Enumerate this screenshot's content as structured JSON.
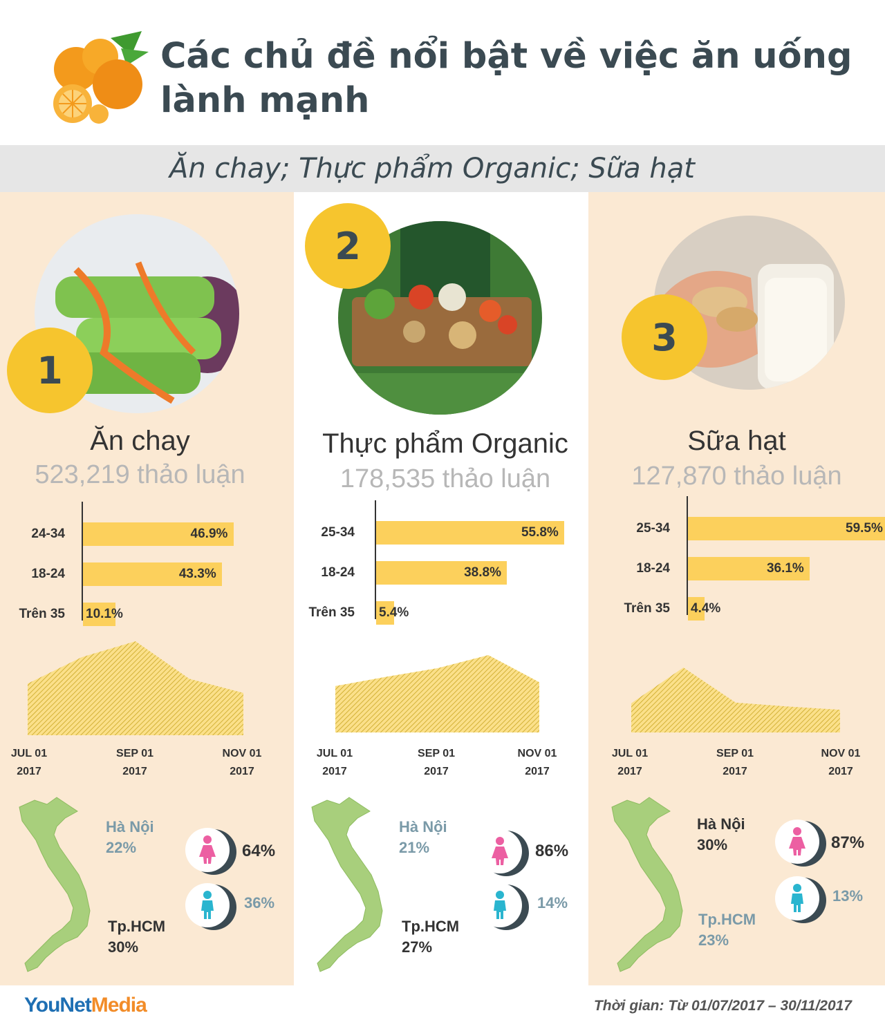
{
  "title": "Các chủ đề nổi bật về việc ăn uống lành mạnh",
  "subtitle": "Ăn chay; Thực phẩm Organic; Sữa hạt",
  "columns": [
    {
      "badge": "1",
      "name": "Ăn chay",
      "count": "523,219 thảo luận",
      "bars": [
        {
          "label": "24-34",
          "value": 46.9,
          "text": "46.9%"
        },
        {
          "label": "18-24",
          "value": 43.3,
          "text": "43.3%"
        },
        {
          "label": "Trên 35",
          "value": 10.1,
          "text": "10.1%"
        }
      ],
      "trend": [
        0.55,
        0.83,
        1.0,
        0.6,
        0.45
      ],
      "ticks": [
        [
          "JUL 01",
          "2017"
        ],
        [
          "SEP 01",
          "2017"
        ],
        [
          "NOV 01",
          "2017"
        ]
      ],
      "city1": {
        "name": "Hà Nội",
        "pct": "22%"
      },
      "city2": {
        "name": "Tp.HCM",
        "pct": "30%"
      },
      "female": "64%",
      "male": "36%"
    },
    {
      "badge": "2",
      "name": "Thực phẩm Organic",
      "count": "178,535 thảo luận",
      "bars": [
        {
          "label": "25-34",
          "value": 55.8,
          "text": "55.8%"
        },
        {
          "label": "18-24",
          "value": 38.8,
          "text": "38.8%"
        },
        {
          "label": "Trên 35",
          "value": 5.4,
          "text": "5.4%"
        }
      ],
      "trend": [
        0.6,
        0.72,
        0.83,
        1.0,
        0.65
      ],
      "ticks": [
        [
          "JUL 01",
          "2017"
        ],
        [
          "SEP 01",
          "2017"
        ],
        [
          "NOV 01",
          "2017"
        ]
      ],
      "city1": {
        "name": "Hà Nội",
        "pct": "21%"
      },
      "city2": {
        "name": "Tp.HCM",
        "pct": "27%"
      },
      "female": "86%",
      "male": "14%"
    },
    {
      "badge": "3",
      "name": "Sữa hạt",
      "count": "127,870 thảo luận",
      "bars": [
        {
          "label": "25-34",
          "value": 59.5,
          "text": "59.5%"
        },
        {
          "label": "18-24",
          "value": 36.1,
          "text": "36.1%"
        },
        {
          "label": "Trên 35",
          "value": 4.4,
          "text": "4.4%"
        }
      ],
      "trend": [
        0.45,
        1.0,
        0.46,
        0.4,
        0.35
      ],
      "ticks": [
        [
          "JUL 01",
          "2017"
        ],
        [
          "SEP 01",
          "2017"
        ],
        [
          "NOV 01",
          "2017"
        ]
      ],
      "city1": {
        "name": "Hà Nội",
        "pct": "30%"
      },
      "city2": {
        "name": "Tp.HCM",
        "pct": "23%"
      },
      "female": "87%",
      "male": "13%"
    }
  ],
  "chart_data": [
    {
      "type": "bar",
      "categories": [
        "24-34",
        "18-24",
        "Trên 35"
      ],
      "values": [
        46.9,
        43.3,
        10.1
      ]
    },
    {
      "type": "bar",
      "categories": [
        "25-34",
        "18-24",
        "Trên 35"
      ],
      "values": [
        55.8,
        38.8,
        5.4
      ]
    },
    {
      "type": "bar",
      "categories": [
        "25-34",
        "18-24",
        "Trên 35"
      ],
      "values": [
        59.5,
        36.1,
        4.4
      ]
    }
  ],
  "footer": {
    "logo_a": "YouNet",
    "logo_b": "Media",
    "time": "Thời gian: Từ 01/07/2017 – 30/11/2017"
  },
  "colors": {
    "accent": "#f6c52e",
    "bar": "#fcd05c",
    "panel": "#fbe9d3",
    "map": "#a8cf7c",
    "female": "#ec5fa2",
    "male": "#2ab5cf"
  }
}
